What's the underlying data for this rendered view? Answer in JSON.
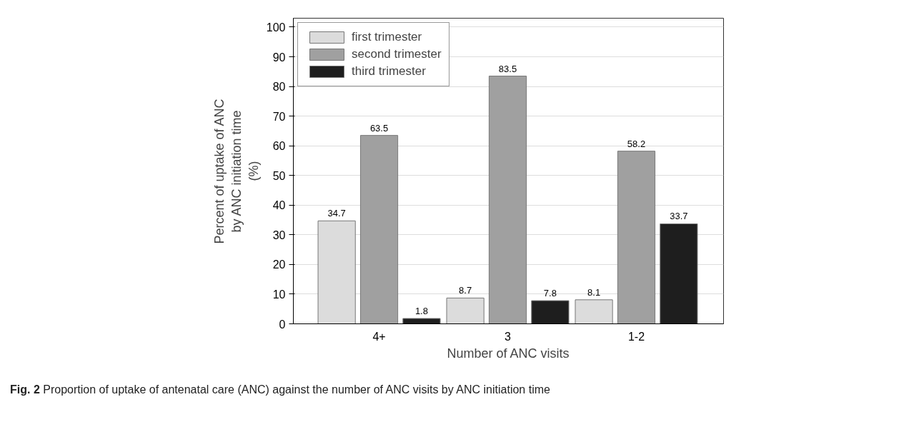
{
  "chart_data": {
    "type": "bar",
    "xlabel": "Number of ANC visits",
    "ylabel": "Percent of uptake of ANC\nby ANC initiation time\n(%)",
    "categories": [
      "4+",
      "3",
      "1-2"
    ],
    "series": [
      {
        "name": "first trimester",
        "color": "#dcdcdc",
        "values": [
          34.7,
          8.7,
          8.1
        ]
      },
      {
        "name": "second trimester",
        "color": "#a0a0a0",
        "values": [
          63.5,
          83.5,
          58.2
        ]
      },
      {
        "name": "third trimester",
        "color": "#1e1e1e",
        "values": [
          1.8,
          7.8,
          33.7
        ]
      }
    ],
    "ylim": [
      0,
      103
    ],
    "yticks": [
      0,
      10,
      20,
      30,
      40,
      50,
      60,
      70,
      80,
      90,
      100
    ],
    "grid": "y",
    "legend": "top left",
    "data_labels": true,
    "annotations": [
      "Fig. 2 Proportion of uptake of antenatal care (ANC) against the number of ANC visits by ANC initiation time"
    ]
  }
}
